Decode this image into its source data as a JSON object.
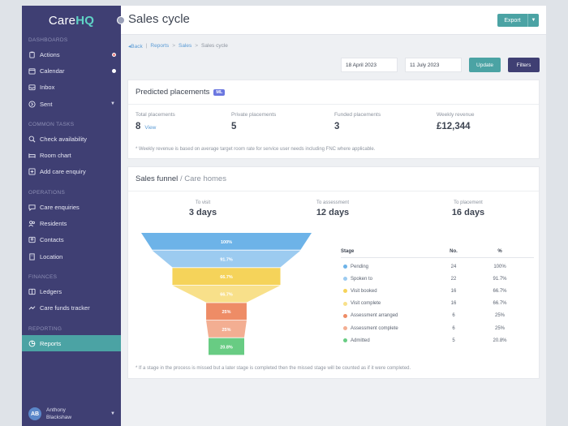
{
  "sidebar": {
    "logo_prefix": "Care",
    "logo_suffix": "HQ",
    "sections": {
      "dashboards": "Dashboards",
      "common_tasks": "Common tasks",
      "operations": "Operations",
      "finances": "Finances",
      "reporting": "Reporting"
    },
    "items": {
      "actions": "Actions",
      "calendar": "Calendar",
      "inbox": "Inbox",
      "sent": "Sent",
      "check_availability": "Check availability",
      "room_chart": "Room chart",
      "add_care_enquiry": "Add care enquiry",
      "care_enquiries": "Care enquiries",
      "residents": "Residents",
      "contacts": "Contacts",
      "location": "Location",
      "ledgers": "Ledgers",
      "care_funds_tracker": "Care funds tracker",
      "reports": "Reports"
    },
    "user": {
      "initials": "AB",
      "first": "Anthony",
      "last": "Blackshaw"
    }
  },
  "header": {
    "title": "Sales cycle",
    "export_label": "Export"
  },
  "breadcrumb": {
    "back": "Back",
    "reports": "Reports",
    "sales": "Sales",
    "current": "Sales cycle",
    "sep": ">",
    "bar": "|"
  },
  "filters": {
    "from_date": "18 April 2023",
    "to_date": "11 July 2023",
    "update_label": "Update",
    "filters_label": "Filters"
  },
  "predicted": {
    "title": "Predicted placements",
    "badge": "ML",
    "metrics": {
      "total": {
        "label": "Total placements",
        "value": "8",
        "link": "View"
      },
      "private": {
        "label": "Private placements",
        "value": "5"
      },
      "funded": {
        "label": "Funded placements",
        "value": "3"
      },
      "revenue": {
        "label": "Weekly revenue",
        "value": "£12,344"
      }
    },
    "footnote": "* Weekly revenue is based on average target room rate for service user needs including FNC where applicable."
  },
  "funnel": {
    "title": "Sales funnel",
    "subtitle": "/ Care homes",
    "stats": {
      "to_visit": {
        "label": "To visit",
        "value": "3 days"
      },
      "to_assessment": {
        "label": "To assessment",
        "value": "12 days"
      },
      "to_placement": {
        "label": "To placement",
        "value": "16 days"
      }
    },
    "table_headers": {
      "stage": "Stage",
      "no": "No.",
      "pct": "%"
    },
    "footnote": "* If a stage in the process is missed but a later stage is completed then the missed stage will be counted as if it were completed."
  },
  "chart_data": {
    "type": "funnel",
    "stages": [
      {
        "name": "Pending",
        "count": 24,
        "pct": 100,
        "pct_label": "100%",
        "color": "#6db3e8"
      },
      {
        "name": "Spoken to",
        "count": 22,
        "pct": 91.7,
        "pct_label": "91.7%",
        "color": "#9ccbf0"
      },
      {
        "name": "Visit booked",
        "count": 16,
        "pct": 66.7,
        "pct_label": "66.7%",
        "color": "#f5d35a"
      },
      {
        "name": "Visit complete",
        "count": 16,
        "pct": 66.7,
        "pct_label": "66.7%",
        "color": "#f8e08a"
      },
      {
        "name": "Assessment arranged",
        "count": 6,
        "pct": 25,
        "pct_label": "25%",
        "color": "#ee8c66"
      },
      {
        "name": "Assessment complete",
        "count": 6,
        "pct": 25,
        "pct_label": "25%",
        "color": "#f3ae92"
      },
      {
        "name": "Admitted",
        "count": 5,
        "pct": 20.8,
        "pct_label": "20.8%",
        "color": "#68cc83"
      }
    ]
  },
  "colors": {
    "sidebar": "#3f3f73",
    "accent": "#4ba3a4",
    "filters_button": "#3f3f73",
    "link": "#5b9bd5",
    "badge": "#6b77e0"
  }
}
